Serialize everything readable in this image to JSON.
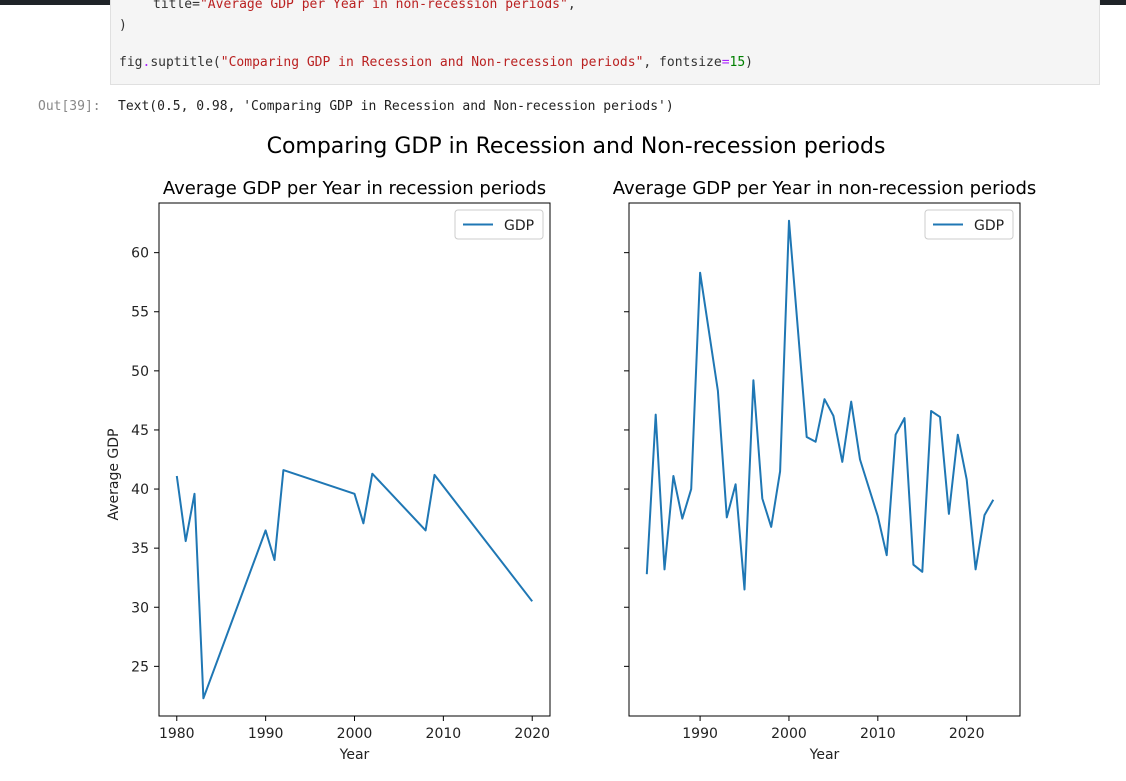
{
  "notebook": {
    "code": {
      "line1_prefix": "title=",
      "line1_string": "\"Average GDP per Year in non-recession periods\"",
      "line1_suffix": ",",
      "line2": ")",
      "line3_obj": "fig",
      "line3_dot": ".",
      "line3_fn": "suptitle(",
      "line3_string": "\"Comparing GDP in Recession and Non-recession periods\"",
      "line3_mid": ", fontsize",
      "line3_eq": "=",
      "line3_num": "15",
      "line3_close": ")"
    },
    "output": {
      "prompt": "Out[39]:",
      "text": "Text(0.5, 0.98, 'Comparing GDP in Recession and Non-recession periods')"
    }
  },
  "figure": {
    "suptitle": "Comparing GDP in Recession and Non-recession periods",
    "line_color": "#1f77b4"
  },
  "chart_data": [
    {
      "type": "line",
      "title": "Average GDP per Year in recession periods",
      "xlabel": "Year",
      "ylabel": "Average GDP",
      "legend": "upper right",
      "series": [
        {
          "name": "GDP",
          "x": [
            1980,
            1981,
            1982,
            1983,
            1990,
            1991,
            1992,
            2000,
            2001,
            2002,
            2008,
            2009,
            2020
          ],
          "y": [
            41.1,
            35.6,
            39.6,
            22.3,
            36.5,
            34.0,
            41.6,
            39.6,
            37.1,
            41.3,
            36.5,
            41.2,
            30.5
          ]
        }
      ],
      "xticks": [
        1980,
        1990,
        2000,
        2010,
        2020
      ],
      "yticks": [
        25,
        30,
        35,
        40,
        45,
        50,
        55,
        60
      ],
      "xlim": [
        1978,
        2022
      ],
      "ylim": [
        20.8,
        64.2
      ],
      "grid": false
    },
    {
      "type": "line",
      "title": "Average GDP per Year in non-recession periods",
      "xlabel": "Year",
      "ylabel": "",
      "legend": "upper right",
      "series": [
        {
          "name": "GDP",
          "x": [
            1984,
            1985,
            1986,
            1987,
            1988,
            1989,
            1990,
            1992,
            1993,
            1994,
            1995,
            1996,
            1997,
            1998,
            1999,
            2000,
            2002,
            2003,
            2004,
            2005,
            2006,
            2007,
            2008,
            2010,
            2011,
            2012,
            2013,
            2014,
            2015,
            2016,
            2017,
            2018,
            2019,
            2020,
            2021,
            2022,
            2023
          ],
          "y": [
            32.8,
            46.3,
            33.2,
            41.1,
            37.5,
            40.0,
            58.3,
            48.3,
            37.6,
            40.4,
            31.5,
            49.2,
            39.2,
            36.8,
            41.5,
            62.7,
            44.4,
            44.0,
            47.6,
            46.2,
            42.3,
            47.4,
            42.5,
            37.7,
            34.4,
            44.6,
            46.0,
            33.6,
            33.0,
            46.6,
            46.1,
            37.9,
            44.6,
            40.8,
            33.2,
            37.8,
            39.1
          ]
        }
      ],
      "xticks": [
        1990,
        2000,
        2010,
        2020
      ],
      "yticks": [
        25,
        30,
        35,
        40,
        45,
        50,
        55,
        60
      ],
      "xlim": [
        1982,
        2026
      ],
      "ylim": [
        20.8,
        64.2
      ],
      "grid": false
    }
  ]
}
